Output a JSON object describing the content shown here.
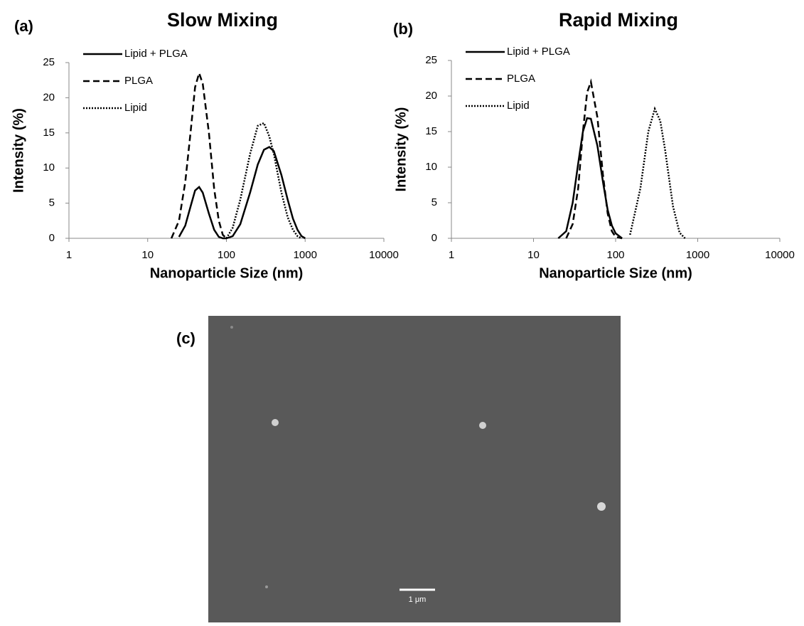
{
  "chart_data": [
    {
      "type": "line",
      "panel_label": "(a)",
      "title": "Slow Mixing",
      "xlabel": "Nanoparticle Size (nm)",
      "ylabel": "Intensity (%)",
      "xscale": "log",
      "xlim": [
        1,
        10000
      ],
      "xticks": [
        1,
        10,
        100,
        1000,
        10000
      ],
      "ylim": [
        0,
        25
      ],
      "yticks": [
        0,
        5,
        10,
        15,
        20,
        25
      ],
      "grid": false,
      "legend": "upper left",
      "x": [
        20,
        25,
        30,
        35,
        40,
        45,
        50,
        60,
        70,
        80,
        90,
        100,
        120,
        150,
        200,
        250,
        300,
        350,
        400,
        500,
        600,
        700,
        800,
        900,
        1000
      ],
      "series": [
        {
          "name": "Lipid + PLGA",
          "color": "#000000",
          "dash": "solid",
          "values": [
            null,
            0.2,
            1.8,
            4.5,
            6.8,
            7.3,
            6.5,
            3.5,
            1.2,
            0.2,
            0,
            0,
            0.3,
            2.0,
            6.5,
            10.5,
            12.6,
            13.0,
            12.4,
            9.0,
            5.5,
            2.8,
            1.2,
            0.3,
            0
          ]
        },
        {
          "name": "PLGA",
          "color": "#000000",
          "dash": "dashed",
          "values": [
            0,
            2.5,
            8,
            15,
            21.5,
            23.5,
            22,
            15,
            7,
            2.5,
            0.5,
            0,
            null,
            null,
            null,
            null,
            null,
            null,
            null,
            null,
            null,
            null,
            null,
            null,
            null
          ]
        },
        {
          "name": "Lipid",
          "color": "#000000",
          "dash": "dotted",
          "values": [
            null,
            null,
            null,
            null,
            null,
            null,
            null,
            null,
            null,
            null,
            null,
            0,
            1.5,
            5.5,
            12,
            16,
            16.4,
            14.5,
            12,
            6.5,
            3,
            1.2,
            0.3,
            0,
            null
          ]
        }
      ]
    },
    {
      "type": "line",
      "panel_label": "(b)",
      "title": "Rapid Mixing",
      "xlabel": "Nanoparticle Size (nm)",
      "ylabel": "Intensity (%)",
      "xscale": "log",
      "xlim": [
        1,
        10000
      ],
      "xticks": [
        1,
        10,
        100,
        1000,
        10000
      ],
      "ylim": [
        0,
        25
      ],
      "yticks": [
        0,
        5,
        10,
        15,
        20,
        25
      ],
      "grid": false,
      "legend": "upper left",
      "x": [
        20,
        25,
        30,
        35,
        40,
        45,
        50,
        60,
        70,
        80,
        90,
        100,
        120,
        150,
        200,
        250,
        300,
        350,
        400,
        500,
        600,
        700
      ],
      "series": [
        {
          "name": "Lipid + PLGA",
          "color": "#000000",
          "dash": "solid",
          "values": [
            0,
            1,
            5,
            10.5,
            15,
            16.9,
            16.8,
            13,
            8,
            4,
            1.8,
            0.7,
            0,
            null,
            null,
            null,
            null,
            null,
            null,
            null,
            null,
            null
          ]
        },
        {
          "name": "PLGA",
          "color": "#000000",
          "dash": "dashed",
          "values": [
            null,
            0,
            2,
            7,
            15,
            20.5,
            22,
            17,
            9,
            3.5,
            1,
            0.2,
            0,
            null,
            null,
            null,
            null,
            null,
            null,
            null,
            null,
            null
          ]
        },
        {
          "name": "Lipid",
          "color": "#000000",
          "dash": "dotted",
          "values": [
            null,
            null,
            null,
            null,
            null,
            null,
            null,
            null,
            null,
            null,
            null,
            null,
            null,
            0.5,
            7,
            15,
            18.2,
            16.5,
            12.5,
            4.5,
            0.8,
            0
          ]
        }
      ]
    }
  ],
  "image": {
    "panel_label": "(c)",
    "scale_bar": "1 μm"
  }
}
